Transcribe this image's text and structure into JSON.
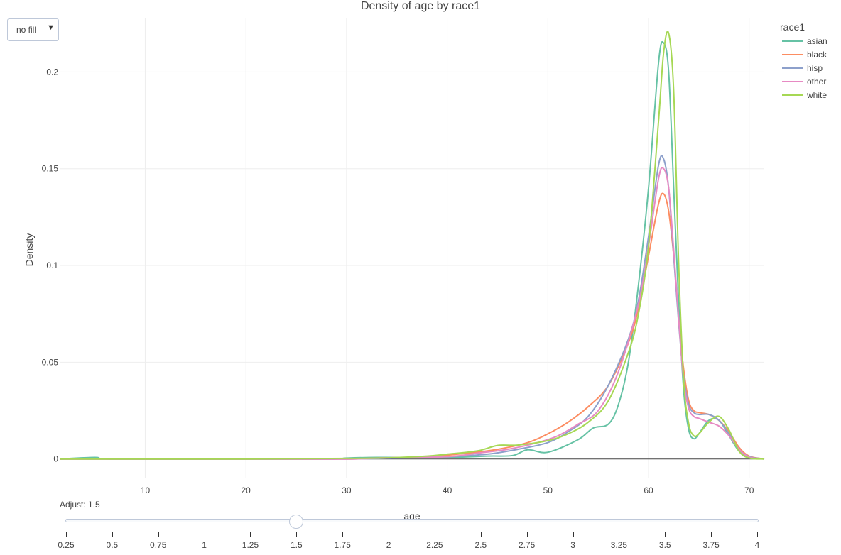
{
  "chart_data": {
    "type": "line",
    "title": "Density of age by race1",
    "xlabel": "age",
    "ylabel": "Density",
    "xlim": [
      1.5,
      71.5
    ],
    "ylim": [
      -0.01,
      0.228
    ],
    "x_ticks": [
      10,
      20,
      30,
      40,
      50,
      60,
      70
    ],
    "y_ticks": [
      0,
      0.05,
      0.1,
      0.15,
      0.2
    ],
    "y_tick_labels": [
      "0",
      "0.05",
      "0.1",
      "0.15",
      "0.2"
    ],
    "legend_title": "race1",
    "legend_position": "top-right",
    "series": [
      {
        "name": "asian",
        "color": "#66c2a5",
        "x": [
          1.5,
          5,
          7,
          20,
          28.5,
          30,
          33,
          40,
          44,
          46.5,
          48,
          50,
          53,
          54.5,
          56,
          57,
          58,
          59,
          60,
          61,
          61.5,
          62,
          62.5,
          63,
          63.5,
          64,
          64.5,
          65,
          66,
          67,
          68,
          69,
          70,
          71.5
        ],
        "y": [
          0,
          0.0008,
          0,
          0,
          0,
          0.0005,
          0.0008,
          0.0008,
          0.0015,
          0.0018,
          0.0048,
          0.0035,
          0.01,
          0.016,
          0.018,
          0.028,
          0.05,
          0.09,
          0.14,
          0.205,
          0.215,
          0.2,
          0.14,
          0.08,
          0.035,
          0.015,
          0.0105,
          0.013,
          0.02,
          0.02,
          0.012,
          0.004,
          0.001,
          0
        ]
      },
      {
        "name": "black",
        "color": "#fc8d62",
        "x": [
          1.5,
          20,
          30,
          33,
          38,
          42,
          45,
          48,
          50,
          52,
          54,
          56,
          58,
          59,
          60,
          61,
          61.5,
          62,
          62.5,
          63,
          63.5,
          64,
          64.5,
          65,
          66,
          67,
          68,
          69,
          70,
          71.5
        ],
        "y": [
          0,
          0,
          0,
          0.0005,
          0.0012,
          0.003,
          0.005,
          0.0085,
          0.013,
          0.019,
          0.027,
          0.038,
          0.06,
          0.078,
          0.105,
          0.132,
          0.137,
          0.128,
          0.105,
          0.072,
          0.046,
          0.03,
          0.025,
          0.024,
          0.023,
          0.02,
          0.014,
          0.006,
          0.0015,
          0
        ]
      },
      {
        "name": "hisp",
        "color": "#8da0cb",
        "x": [
          1.5,
          20,
          30,
          34,
          40,
          44,
          47,
          50,
          52,
          54,
          56,
          58,
          59,
          60,
          61,
          61.5,
          62,
          62.5,
          63,
          63.5,
          64,
          64.5,
          65,
          66,
          67,
          68,
          69,
          70,
          71.5
        ],
        "y": [
          0,
          0,
          0,
          0.0004,
          0.0012,
          0.0025,
          0.005,
          0.0085,
          0.014,
          0.022,
          0.038,
          0.062,
          0.082,
          0.115,
          0.152,
          0.155,
          0.14,
          0.105,
          0.07,
          0.042,
          0.028,
          0.024,
          0.023,
          0.023,
          0.02,
          0.013,
          0.005,
          0.0012,
          0
        ]
      },
      {
        "name": "other",
        "color": "#e78ac3",
        "x": [
          1.5,
          20,
          30,
          34,
          40,
          43,
          46,
          49,
          51,
          53,
          55,
          57,
          59,
          60,
          61,
          61.5,
          62,
          62.5,
          63,
          63.5,
          64,
          64.5,
          65,
          66,
          67,
          68,
          69,
          70,
          71.5
        ],
        "y": [
          0,
          0,
          0,
          0.0006,
          0.0012,
          0.003,
          0.005,
          0.0085,
          0.012,
          0.018,
          0.025,
          0.045,
          0.08,
          0.11,
          0.145,
          0.15,
          0.14,
          0.108,
          0.072,
          0.04,
          0.026,
          0.022,
          0.021,
          0.019,
          0.017,
          0.012,
          0.005,
          0.001,
          0
        ]
      },
      {
        "name": "white",
        "color": "#a6d854",
        "x": [
          1.5,
          20,
          30,
          34,
          38,
          40,
          43,
          45,
          47,
          50,
          52,
          54,
          56,
          58,
          59,
          60,
          61,
          61.5,
          62,
          62.5,
          63,
          63.5,
          64,
          64.5,
          65,
          66,
          67,
          68,
          69,
          70,
          71.5
        ],
        "y": [
          0,
          0,
          0.0003,
          0.0006,
          0.0015,
          0.0025,
          0.0042,
          0.007,
          0.0072,
          0.0095,
          0.013,
          0.019,
          0.03,
          0.055,
          0.075,
          0.11,
          0.175,
          0.21,
          0.22,
          0.19,
          0.1,
          0.04,
          0.018,
          0.012,
          0.013,
          0.019,
          0.022,
          0.015,
          0.004,
          0.0005,
          0
        ]
      }
    ]
  },
  "controls": {
    "fill_dropdown_value": "no fill",
    "dropdown_arrow": "▼",
    "slider_prefix": "Adjust: ",
    "slider_value": "1.5",
    "slider_current": 1.5,
    "slider_min": 0.25,
    "slider_max": 4,
    "slider_ticks": [
      0.25,
      0.5,
      0.75,
      1,
      1.25,
      1.5,
      1.75,
      2,
      2.25,
      2.5,
      2.75,
      3,
      3.25,
      3.5,
      3.75,
      4
    ],
    "slider_tick_labels": [
      "0.25",
      "0.5",
      "0.75",
      "1",
      "1.25",
      "1.5",
      "1.75",
      "2",
      "2.25",
      "2.5",
      "2.75",
      "3",
      "3.25",
      "3.5",
      "3.75",
      "4"
    ]
  }
}
